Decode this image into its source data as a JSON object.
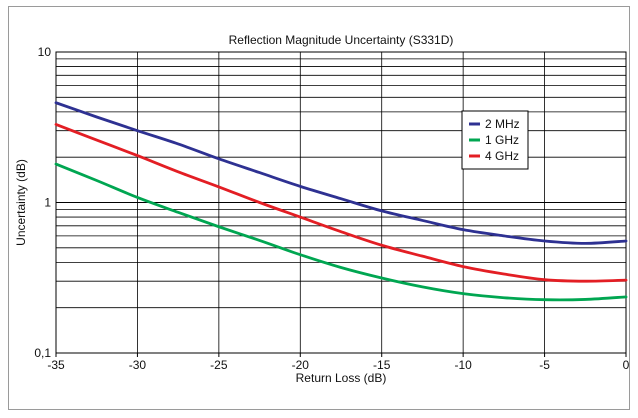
{
  "chart_data": {
    "type": "line",
    "title": "Reflection Magnitude Uncertainty (S331D)",
    "xlabel": "Return Loss (dB)",
    "ylabel": "Uncertainty (dB)",
    "xlim": [
      -35,
      0
    ],
    "ylim": [
      0.1,
      10
    ],
    "yscale": "log",
    "grid": true,
    "legend_position": "right",
    "x_ticks": [
      -35,
      -30,
      -25,
      -20,
      -15,
      -10,
      -5,
      0
    ],
    "x_tick_labels": [
      "-35",
      "-30",
      "-25",
      "-20",
      "-15",
      "-10",
      "-5",
      "0"
    ],
    "y_ticks": [
      0.1,
      1,
      10
    ],
    "y_tick_labels": [
      "0,1",
      "1",
      "10"
    ],
    "x": [
      -35,
      -32.5,
      -30,
      -27.5,
      -25,
      -22.5,
      -20,
      -17.5,
      -15,
      -12.5,
      -10,
      -7.5,
      -5,
      -2.5,
      0
    ],
    "series": [
      {
        "name": "2 MHz",
        "color": "#2e3192",
        "values": [
          4.6,
          3.7,
          3.0,
          2.45,
          1.95,
          1.58,
          1.28,
          1.06,
          0.88,
          0.76,
          0.66,
          0.6,
          0.555,
          0.535,
          0.555
        ]
      },
      {
        "name": "1 GHz",
        "color": "#00a651",
        "values": [
          1.8,
          1.4,
          1.08,
          0.86,
          0.69,
          0.56,
          0.45,
          0.37,
          0.315,
          0.275,
          0.248,
          0.233,
          0.226,
          0.227,
          0.236
        ]
      },
      {
        "name": "4 GHz",
        "color": "#e31e24",
        "values": [
          3.3,
          2.6,
          2.05,
          1.6,
          1.27,
          1.0,
          0.8,
          0.64,
          0.52,
          0.44,
          0.375,
          0.335,
          0.307,
          0.3,
          0.305
        ]
      }
    ]
  }
}
